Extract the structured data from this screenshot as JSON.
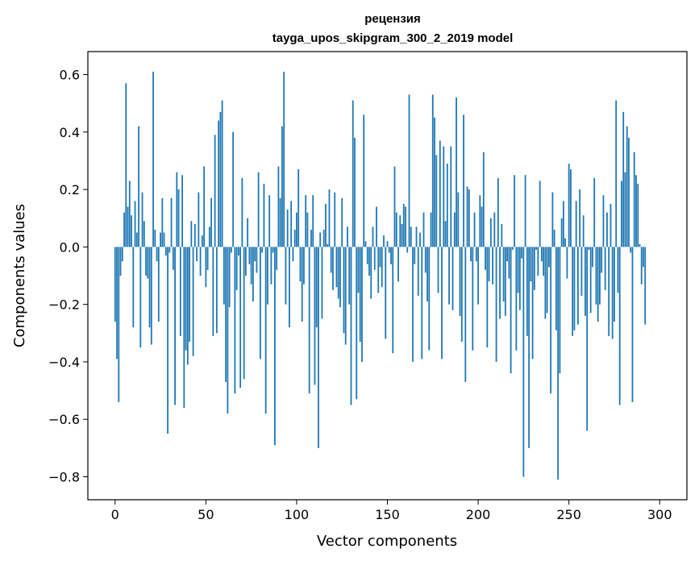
{
  "chart_data": {
    "type": "bar",
    "title_line1": "рецензия",
    "title_line2": "tayga_upos_skipgram_300_2_2019 model",
    "xlabel": "Vector components",
    "ylabel": "Components values",
    "xlim": [
      -15,
      315
    ],
    "ylim": [
      -0.88,
      0.68
    ],
    "xticks": [
      0,
      50,
      100,
      150,
      200,
      250,
      300
    ],
    "xtick_labels": [
      "0",
      "50",
      "100",
      "150",
      "200",
      "250",
      "300"
    ],
    "yticks": [
      -0.8,
      -0.6,
      -0.4,
      -0.2,
      0.0,
      0.2,
      0.4,
      0.6
    ],
    "ytick_labels": [
      "−0.8",
      "−0.6",
      "−0.4",
      "−0.2",
      "0.0",
      "0.2",
      "0.4",
      "0.6"
    ],
    "bar_color": "#1f77b4",
    "grid": false,
    "values": [
      -0.26,
      -0.39,
      -0.54,
      -0.1,
      -0.05,
      0.12,
      0.57,
      0.14,
      0.23,
      0.11,
      -0.28,
      0.16,
      0.05,
      0.42,
      -0.35,
      0.19,
      0.09,
      -0.1,
      -0.11,
      -0.28,
      -0.34,
      0.61,
      0.06,
      -0.05,
      -0.26,
      0.05,
      0.17,
      0.05,
      -0.03,
      -0.65,
      -0.02,
      0.17,
      -0.08,
      -0.55,
      0.26,
      0.2,
      -0.31,
      0.25,
      -0.56,
      -0.36,
      -0.41,
      -0.33,
      0.09,
      -0.38,
      0.08,
      -0.05,
      0.19,
      -0.1,
      0.04,
      0.28,
      -0.14,
      -0.08,
      0.07,
      0.17,
      -0.31,
      0.39,
      -0.3,
      0.44,
      0.47,
      0.51,
      -0.2,
      -0.47,
      -0.58,
      -0.21,
      -0.02,
      0.4,
      -0.51,
      -0.15,
      -0.03,
      -0.49,
      0.24,
      -0.46,
      -0.1,
      0.1,
      -0.06,
      -0.13,
      -0.19,
      -0.05,
      -0.09,
      0.26,
      -0.39,
      -0.02,
      0.22,
      -0.58,
      -0.2,
      0.18,
      -0.13,
      -0.02,
      -0.69,
      -0.08,
      0.28,
      0.17,
      0.42,
      0.61,
      -0.2,
      0.13,
      -0.28,
      0.16,
      -0.05,
      0.06,
      0.12,
      0.27,
      -0.12,
      -0.26,
      -0.13,
      0.18,
      0.12,
      -0.51,
      0.06,
      0.18,
      -0.48,
      -0.28,
      -0.7,
      0.05,
      -0.25,
      0.06,
      0.15,
      0.01,
      0.2,
      -0.09,
      -0.15,
      0.19,
      -0.14,
      -0.18,
      -0.21,
      0.17,
      -0.3,
      -0.34,
      0.07,
      -0.2,
      -0.55,
      0.51,
      0.38,
      -0.53,
      -0.16,
      -0.33,
      -0.4,
      0.46,
      0.02,
      -0.06,
      -0.1,
      -0.18,
      0.07,
      -0.08,
      0.14,
      -0.16,
      -0.07,
      -0.14,
      0.04,
      -0.32,
      0.02,
      -0.02,
      -0.06,
      -0.37,
      0.28,
      0.12,
      -0.12,
      0.11,
      0.08,
      0.15,
      0.14,
      -0.02,
      0.53,
      0.07,
      -0.4,
      -0.06,
      0.07,
      -0.17,
      0.05,
      -0.39,
      0.12,
      -0.09,
      -0.19,
      -0.36,
      0.12,
      0.53,
      0.45,
      0.32,
      -0.16,
      0.37,
      -0.39,
      0.35,
      0.09,
      0.29,
      -0.2,
      0.35,
      -0.22,
      0.12,
      0.52,
      0.19,
      -0.24,
      -0.33,
      0.46,
      -0.47,
      0.21,
      0.2,
      -0.05,
      -0.36,
      0.12,
      -0.05,
      -0.2,
      0.18,
      0.14,
      0.33,
      -0.08,
      -0.35,
      -0.12,
      0.1,
      -0.13,
      0.12,
      -0.4,
      0.24,
      -0.25,
      0.08,
      -0.19,
      -0.24,
      -0.05,
      -0.11,
      -0.44,
      -0.01,
      0.25,
      -0.36,
      -0.16,
      -0.22,
      -0.04,
      -0.8,
      0.25,
      -0.31,
      -0.7,
      -0.12,
      -0.39,
      -0.15,
      -0.01,
      -0.1,
      0.23,
      -0.05,
      -0.1,
      -0.25,
      -0.23,
      -0.07,
      -0.51,
      0.19,
      0.06,
      -0.29,
      -0.81,
      -0.44,
      0.1,
      0.16,
      0.03,
      -0.11,
      0.29,
      0.27,
      -0.31,
      -0.29,
      0.16,
      -0.27,
      0.2,
      -0.17,
      0.11,
      -0.24,
      -0.64,
      -0.01,
      -0.23,
      -0.07,
      0.24,
      -0.2,
      -0.26,
      -0.2,
      -0.09,
      0.18,
      -0.15,
      0.12,
      -0.31,
      0.15,
      -0.32,
      -0.26,
      0.51,
      -0.16,
      -0.55,
      0.23,
      0.47,
      0.26,
      0.42,
      0.38,
      -0.02,
      -0.54,
      0.33,
      0.25,
      0.22,
      0.01,
      -0.13,
      -0.07,
      -0.27
    ]
  }
}
